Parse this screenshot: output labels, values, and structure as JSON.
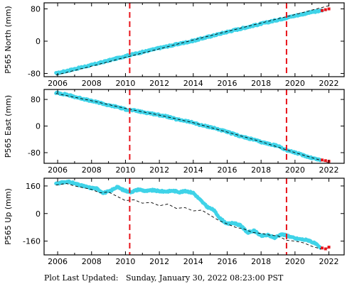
{
  "footer": {
    "label": "Plot Last Updated:",
    "date": "Sunday, January 30, 2022 08:23:00 PST"
  },
  "colors": {
    "observed": "#3fd3e8",
    "model": "#000000",
    "event_line": "#e8141b",
    "recent": "#e8141b"
  },
  "event_lines": [
    2010.25,
    2019.5
  ],
  "chart_data": [
    {
      "type": "scatter",
      "ylabel": "P565 North (mm)",
      "xlim": [
        2005.2,
        2022.9
      ],
      "ylim": [
        -88,
        95
      ],
      "xticks": [
        2006,
        2008,
        2010,
        2012,
        2014,
        2016,
        2018,
        2020,
        2022
      ],
      "yticks": [
        -80,
        0,
        80
      ],
      "series": [
        {
          "kind": "observed",
          "x": [
            2005.9,
            2007,
            2008,
            2009,
            2010,
            2011,
            2012,
            2013,
            2014,
            2015,
            2016,
            2017,
            2018,
            2019,
            2020,
            2021,
            2021.6
          ],
          "y": [
            -80,
            -69,
            -59,
            -48,
            -37,
            -27,
            -17,
            -8,
            1,
            12,
            23,
            33,
            43,
            53,
            63,
            72,
            76
          ]
        },
        {
          "kind": "model",
          "x": [
            2005.9,
            2008,
            2010,
            2012,
            2014,
            2016,
            2018,
            2020,
            2022
          ],
          "y": [
            -84,
            -62,
            -40,
            -19,
            3,
            24,
            45,
            66,
            88
          ]
        },
        {
          "kind": "recent",
          "x": [
            2021.6,
            2021.8,
            2022.0
          ],
          "y": [
            76,
            78,
            80
          ]
        }
      ]
    },
    {
      "type": "scatter",
      "ylabel": "P565 East (mm)",
      "xlim": [
        2005.2,
        2022.9
      ],
      "ylim": [
        -112,
        110
      ],
      "xticks": [
        2006,
        2008,
        2010,
        2012,
        2014,
        2016,
        2018,
        2020,
        2022
      ],
      "yticks": [
        -80,
        0,
        80
      ],
      "series": [
        {
          "kind": "observed",
          "x": [
            2005.9,
            2006.5,
            2007,
            2007.5,
            2008,
            2008.5,
            2009,
            2009.5,
            2010,
            2010.5,
            2011,
            2011.5,
            2012,
            2012.5,
            2013,
            2013.5,
            2014,
            2014.5,
            2015,
            2015.5,
            2016,
            2016.5,
            2017,
            2017.5,
            2018,
            2018.5,
            2019,
            2019.5,
            2020,
            2020.5,
            2021,
            2021.5
          ],
          "y": [
            100,
            95,
            88,
            82,
            75,
            70,
            62,
            58,
            50,
            47,
            42,
            38,
            33,
            28,
            20,
            16,
            10,
            2,
            -3,
            -10,
            -18,
            -26,
            -34,
            -40,
            -48,
            -54,
            -60,
            -72,
            -80,
            -88,
            -96,
            -102
          ]
        },
        {
          "kind": "model",
          "x": [
            2005.9,
            2008,
            2010,
            2012,
            2014,
            2016,
            2018,
            2020,
            2022
          ],
          "y": [
            98,
            76,
            53,
            33,
            10,
            -18,
            -47,
            -80,
            -110
          ]
        },
        {
          "kind": "recent",
          "x": [
            2021.6,
            2021.8,
            2022.0
          ],
          "y": [
            -102,
            -104,
            -106
          ]
        }
      ]
    },
    {
      "type": "scatter",
      "ylabel": "P565 Up (mm)",
      "xlim": [
        2005.2,
        2022.9
      ],
      "ylim": [
        -240,
        205
      ],
      "xticks": [
        2006,
        2008,
        2010,
        2012,
        2014,
        2016,
        2018,
        2020,
        2022
      ],
      "yticks": [
        -160,
        0,
        160
      ],
      "series": [
        {
          "kind": "observed",
          "x": [
            2005.9,
            2006.3,
            2006.7,
            2007.1,
            2007.5,
            2007.9,
            2008.3,
            2008.7,
            2009.1,
            2009.5,
            2009.9,
            2010.3,
            2010.8,
            2011.2,
            2011.6,
            2012,
            2012.4,
            2012.8,
            2013.2,
            2013.6,
            2014,
            2014.4,
            2014.8,
            2015.2,
            2015.6,
            2016,
            2016.4,
            2016.8,
            2017.2,
            2017.6,
            2018,
            2018.4,
            2018.8,
            2019.2,
            2019.6,
            2020,
            2020.4,
            2020.8,
            2021.2,
            2021.5
          ],
          "y": [
            175,
            180,
            185,
            170,
            160,
            150,
            145,
            120,
            130,
            155,
            135,
            125,
            140,
            130,
            135,
            130,
            128,
            132,
            125,
            130,
            120,
            80,
            40,
            20,
            -30,
            -60,
            -55,
            -70,
            -110,
            -100,
            -130,
            -125,
            -140,
            -120,
            -130,
            -145,
            -150,
            -155,
            -175,
            -200
          ]
        },
        {
          "kind": "model",
          "x": [
            2005.9,
            2006.5,
            2007,
            2007.5,
            2008,
            2008.5,
            2009,
            2009.5,
            2010,
            2010.5,
            2011,
            2011.5,
            2012,
            2012.5,
            2013,
            2013.5,
            2014,
            2014.5,
            2015,
            2015.5,
            2016,
            2016.5,
            2017,
            2017.5,
            2018,
            2018.5,
            2019,
            2019.5,
            2020,
            2020.5,
            2021,
            2021.5,
            2022
          ],
          "y": [
            165,
            175,
            160,
            150,
            140,
            120,
            125,
            100,
            75,
            80,
            60,
            65,
            45,
            55,
            30,
            35,
            15,
            20,
            -10,
            -40,
            -60,
            -80,
            -90,
            -110,
            -115,
            -125,
            -130,
            -155,
            -160,
            -170,
            -190,
            -205,
            -200
          ]
        },
        {
          "kind": "recent",
          "x": [
            2021.6,
            2021.8,
            2022.0
          ],
          "y": [
            -200,
            -205,
            -195
          ]
        }
      ]
    }
  ]
}
